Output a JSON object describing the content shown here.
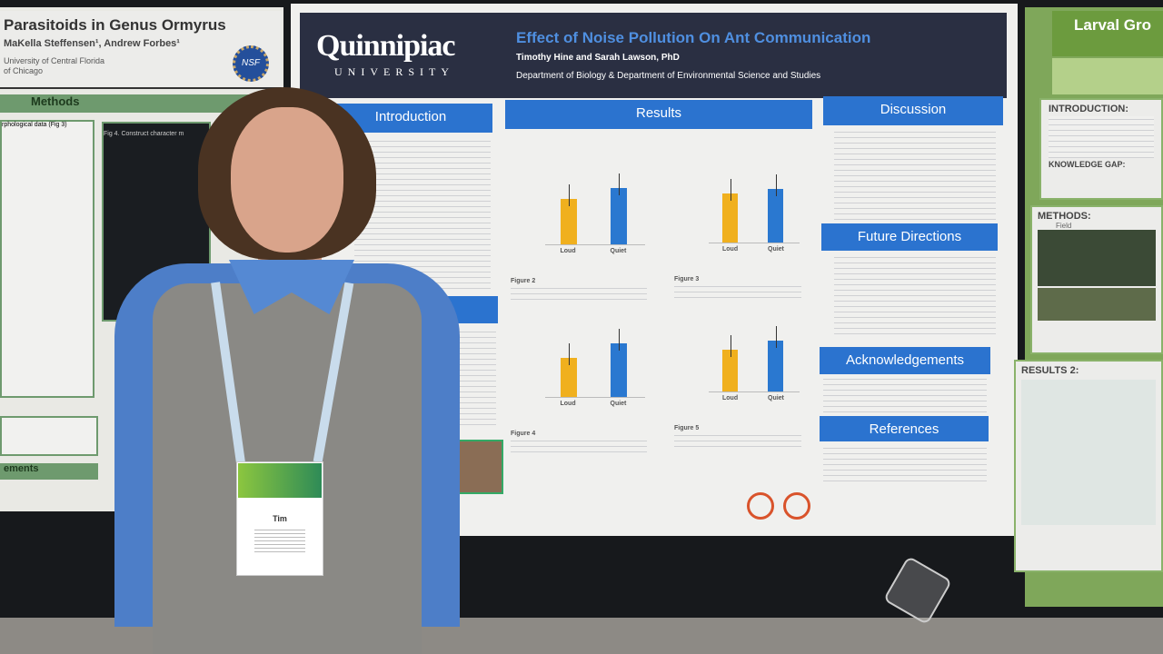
{
  "left_poster": {
    "title": "Parasitoids in Genus Ormyrus",
    "authors": "MaKella Steffensen¹, Andrew Forbes¹",
    "affiliation_1": "University of Central Florida",
    "affiliation_2": "of Chicago",
    "logo": "NSF",
    "methods_header": "Methods",
    "panel_1": "rphological data (Fig 3)",
    "panel_2": "Fig 4. Construct character m",
    "acknowledgements_partial": "ements"
  },
  "main_poster": {
    "university": "Quinnipiac",
    "university_sub": "UNIVERSITY",
    "title": "Effect of Noise Pollution On Ant Communication",
    "authors": "Timothy Hine and Sarah Lawson, PhD",
    "department": "Department of Biology & Department of Environmental Science and Studies",
    "sections": {
      "introduction": "Introduction",
      "methods_partial": "ods",
      "results": "Results",
      "discussion": "Discussion",
      "future": "Future Directions",
      "acknowledgements": "Acknowledgements",
      "references": "References"
    },
    "bar_colors": {
      "loud": "#f0b01e",
      "quiet": "#2a78d0"
    },
    "figures": [
      {
        "caption": "Figure 2",
        "loud": 10,
        "quiet": 12.5
      },
      {
        "caption": "Figure 3",
        "loud": 10,
        "quiet": 11
      },
      {
        "caption": "Figure 4",
        "loud": 18,
        "quiet": 25
      },
      {
        "caption": "Figure 5",
        "loud": 9,
        "quiet": 11
      }
    ],
    "group_labels": [
      "Loud",
      "Quiet"
    ]
  },
  "right_poster": {
    "title": "Larval Gro",
    "introduction": "INTRODUCTION:",
    "knowledge_gap": "KNOWLEDGE GAP:",
    "methods": "METHODS:",
    "field": "Field",
    "results": "RESULTS 2:"
  },
  "badge": {
    "name": "Tim"
  }
}
